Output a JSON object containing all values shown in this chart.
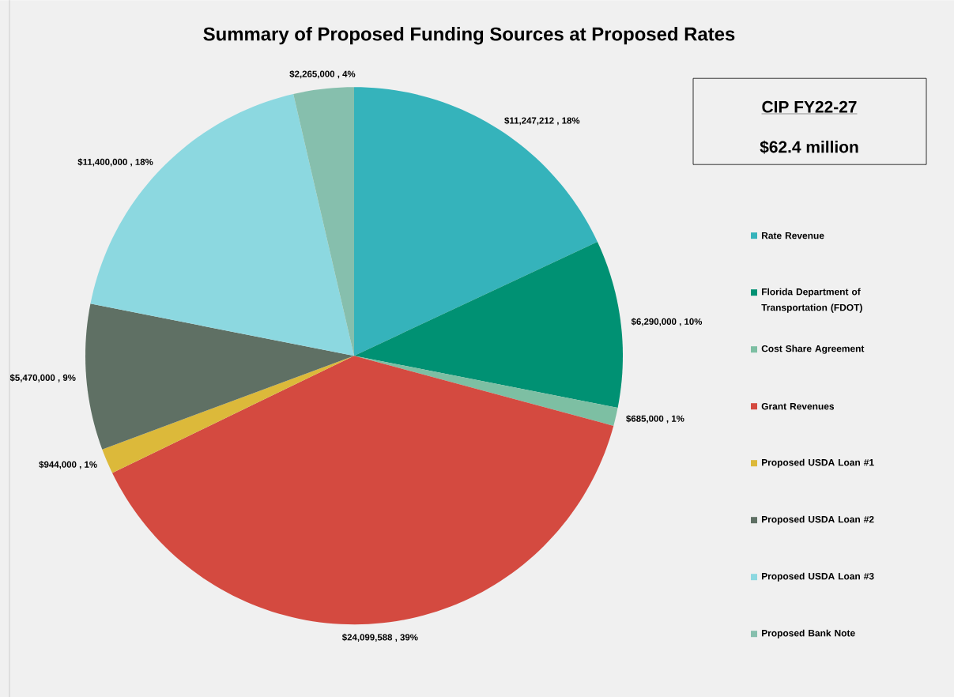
{
  "chart_data": {
    "type": "pie",
    "title": "Summary of Proposed Funding Sources at Proposed Rates",
    "categories": [
      "Rate Revenue",
      "Florida Department of Transportation (FDOT)",
      "Cost Share Agreement",
      "Grant Revenues",
      "Proposed USDA Loan #1",
      "Proposed USDA Loan #2",
      "Proposed USDA Loan #3",
      "Proposed Bank Note"
    ],
    "values": [
      11247212,
      6290000,
      685000,
      24099588,
      944000,
      5470000,
      11400000,
      2265000
    ],
    "colors": [
      "#35b3bb",
      "#009173",
      "#7dbfa3",
      "#d44a40",
      "#dcb93a",
      "#5f7064",
      "#8cd8e0",
      "#86bfad"
    ],
    "value_labels": [
      "$11,247,212 , 18%",
      "$6,290,000 , 10%",
      "$685,000 , 1%",
      "$24,099,588 , 39%",
      "$944,000 , 1%",
      "$5,470,000 , 9%",
      "$11,400,000 , 18%",
      "$2,265,000 , 4%"
    ],
    "legend": "right",
    "annotations": [
      "CIP FY22-27",
      "$62.4 million"
    ]
  }
}
